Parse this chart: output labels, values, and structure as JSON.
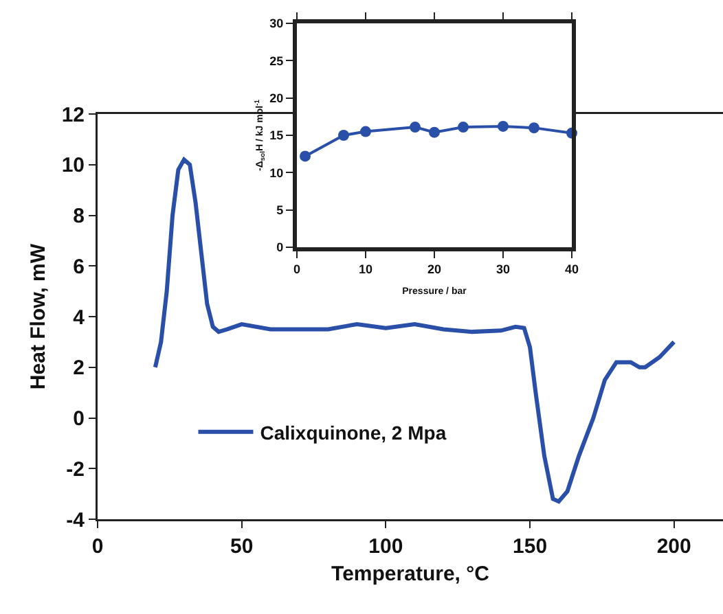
{
  "chart_data": [
    {
      "type": "line",
      "xlabel": "Temperature, °C",
      "ylabel": "Heat Flow, mW",
      "xlim": [
        0,
        217
      ],
      "xticks": [
        0,
        50,
        100,
        150,
        200
      ],
      "ylim": [
        -4,
        12
      ],
      "yticks": [
        -4,
        -2,
        0,
        2,
        4,
        6,
        8,
        10,
        12
      ],
      "grid": false,
      "legend": "bottom left",
      "marker": "none",
      "line_style": "solid",
      "x": [
        20,
        22,
        24,
        26,
        28,
        30,
        32,
        34,
        36,
        38,
        40,
        42,
        45,
        50,
        60,
        80,
        90,
        100,
        110,
        120,
        130,
        140,
        145,
        148,
        150,
        152,
        155,
        158,
        160,
        163,
        167,
        172,
        176,
        180,
        185,
        188,
        190,
        195,
        200
      ],
      "series": [
        {
          "name": "Calixquinone, 2 Mpa",
          "color": "#2a4fa8",
          "values": [
            2,
            3,
            5,
            8,
            9.8,
            10.2,
            10,
            8.5,
            6.5,
            4.5,
            3.6,
            3.4,
            3.5,
            3.7,
            3.5,
            3.5,
            3.7,
            3.55,
            3.7,
            3.5,
            3.4,
            3.45,
            3.6,
            3.55,
            2.8,
            1,
            -1.5,
            -3.2,
            -3.3,
            -2.9,
            -1.5,
            0,
            1.5,
            2.2,
            2.2,
            2,
            2,
            2.4,
            3
          ]
        }
      ]
    },
    {
      "type": "line",
      "xlabel": "Pressure / bar",
      "ylabel": "-Δ$_{sol}$H / kJ mol$^{-1}$",
      "xlim": [
        0,
        40
      ],
      "xticks": [
        0,
        10,
        20,
        30,
        40
      ],
      "ylim": [
        0,
        30
      ],
      "yticks": [
        0,
        5,
        10,
        15,
        20,
        25,
        30
      ],
      "grid": false,
      "legend": false,
      "marker": "circle",
      "line_style": "solid",
      "x": [
        1.2,
        6.8,
        10,
        17.2,
        20,
        24.2,
        30,
        34.5,
        40
      ],
      "series": [
        {
          "color": "#2a4fa8",
          "values": [
            12.2,
            15,
            15.5,
            16.1,
            15.4,
            16.1,
            16.2,
            16,
            15.3
          ]
        }
      ]
    }
  ]
}
